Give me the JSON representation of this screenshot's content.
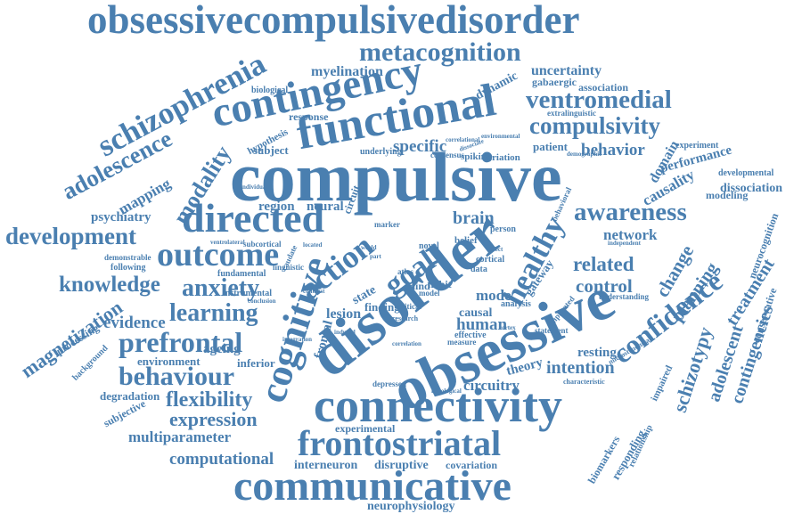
{
  "word_color": "#4a7fb0",
  "background": "#ffffff",
  "words": [
    {
      "key": "w1",
      "text": "obsessivecompulsivedisorder"
    },
    {
      "key": "w2",
      "text": "metacognition"
    },
    {
      "key": "w3",
      "text": "schizophrenia"
    },
    {
      "key": "w4",
      "text": "contingency"
    },
    {
      "key": "w5",
      "text": "myelination"
    },
    {
      "key": "w6",
      "text": "uncertainty"
    },
    {
      "key": "w7",
      "text": "functional"
    },
    {
      "key": "w8",
      "text": "ventromedial"
    },
    {
      "key": "w9",
      "text": "compulsivity"
    },
    {
      "key": "w10",
      "text": "adolescence"
    },
    {
      "key": "w11",
      "text": "compulsive"
    },
    {
      "key": "w12",
      "text": "modality"
    },
    {
      "key": "w13",
      "text": "directed"
    },
    {
      "key": "w14",
      "text": "awareness"
    },
    {
      "key": "w15",
      "text": "development"
    },
    {
      "key": "w16",
      "text": "outcome"
    },
    {
      "key": "w17",
      "text": "disorder"
    },
    {
      "key": "w18",
      "text": "cognitive"
    },
    {
      "key": "w19",
      "text": "action"
    },
    {
      "key": "w20",
      "text": "goal"
    },
    {
      "key": "w21",
      "text": "healthy"
    },
    {
      "key": "w22",
      "text": "knowledge"
    },
    {
      "key": "w23",
      "text": "anxiety"
    },
    {
      "key": "w24",
      "text": "learning"
    },
    {
      "key": "w25",
      "text": "obsessive"
    },
    {
      "key": "w26",
      "text": "prefrontal"
    },
    {
      "key": "w27",
      "text": "behaviour"
    },
    {
      "key": "w28",
      "text": "connectivity"
    },
    {
      "key": "w29",
      "text": "flexibility"
    },
    {
      "key": "w30",
      "text": "expression"
    },
    {
      "key": "w31",
      "text": "frontostriatal"
    },
    {
      "key": "w32",
      "text": "communicative"
    },
    {
      "key": "w33",
      "text": "multiparameter"
    },
    {
      "key": "w34",
      "text": "computational"
    },
    {
      "key": "w35",
      "text": "confidence"
    },
    {
      "key": "w36",
      "text": "magnetization"
    },
    {
      "key": "w37",
      "text": "evidence"
    },
    {
      "key": "w38",
      "text": "mapping"
    },
    {
      "key": "w39",
      "text": "psychiatry"
    },
    {
      "key": "w40",
      "text": "specific"
    },
    {
      "key": "w41",
      "text": "behavior"
    },
    {
      "key": "w42",
      "text": "planning"
    },
    {
      "key": "w43",
      "text": "control"
    },
    {
      "key": "w44",
      "text": "related"
    },
    {
      "key": "w45",
      "text": "network"
    },
    {
      "key": "w46",
      "text": "change"
    },
    {
      "key": "w47",
      "text": "treatment"
    },
    {
      "key": "w48",
      "text": "schizotypy"
    },
    {
      "key": "w49",
      "text": "adolescent"
    },
    {
      "key": "w50",
      "text": "contingencies"
    },
    {
      "key": "w51",
      "text": "brain"
    },
    {
      "key": "w52",
      "text": "human"
    },
    {
      "key": "w53",
      "text": "causal"
    },
    {
      "key": "w54",
      "text": "mode"
    },
    {
      "key": "w55",
      "text": "lesion"
    },
    {
      "key": "w56",
      "text": "region"
    },
    {
      "key": "w57",
      "text": "neural"
    },
    {
      "key": "w58",
      "text": "circuitry"
    },
    {
      "key": "w59",
      "text": "intention"
    },
    {
      "key": "w60",
      "text": "resting"
    },
    {
      "key": "w61",
      "text": "theory"
    },
    {
      "key": "w62",
      "text": "ageing"
    },
    {
      "key": "w63",
      "text": "environment"
    },
    {
      "key": "w64",
      "text": "inferior"
    },
    {
      "key": "w65",
      "text": "degradation"
    },
    {
      "key": "w66",
      "text": "subjective"
    },
    {
      "key": "w67",
      "text": "processing"
    },
    {
      "key": "w68",
      "text": "background"
    },
    {
      "key": "w69",
      "text": "interneuron"
    },
    {
      "key": "w70",
      "text": "disruptive"
    },
    {
      "key": "w71",
      "text": "covariation"
    },
    {
      "key": "w72",
      "text": "experimental"
    },
    {
      "key": "w73",
      "text": "neurophysiology"
    },
    {
      "key": "w74",
      "text": "biomarkers"
    },
    {
      "key": "w75",
      "text": "responding"
    },
    {
      "key": "w76",
      "text": "relationship"
    },
    {
      "key": "w77",
      "text": "performance"
    },
    {
      "key": "w78",
      "text": "causality"
    },
    {
      "key": "w79",
      "text": "domain"
    },
    {
      "key": "w80",
      "text": "experiment"
    },
    {
      "key": "w81",
      "text": "developmental"
    },
    {
      "key": "w82",
      "text": "dissociation"
    },
    {
      "key": "w83",
      "text": "modeling"
    },
    {
      "key": "w84",
      "text": "neurocognition"
    },
    {
      "key": "w85",
      "text": "conservative"
    },
    {
      "key": "w86",
      "text": "dynamic"
    },
    {
      "key": "w87",
      "text": "association"
    },
    {
      "key": "w88",
      "text": "gabaergic"
    },
    {
      "key": "w89",
      "text": "extralinguistic"
    },
    {
      "key": "w90",
      "text": "patient"
    },
    {
      "key": "w91",
      "text": "variation"
    },
    {
      "key": "w92",
      "text": "spiking"
    },
    {
      "key": "w93",
      "text": "consensus"
    },
    {
      "key": "w94",
      "text": "underlying"
    },
    {
      "key": "w95",
      "text": "subject"
    },
    {
      "key": "w96",
      "text": "hypothesis"
    },
    {
      "key": "w97",
      "text": "biological"
    },
    {
      "key": "w98",
      "text": "response"
    },
    {
      "key": "w99",
      "text": "following"
    },
    {
      "key": "w100",
      "text": "demonstrable"
    },
    {
      "key": "w101",
      "text": "fundamental"
    },
    {
      "key": "w102",
      "text": "instrumental"
    },
    {
      "key": "w103",
      "text": "subcortical"
    },
    {
      "key": "w104",
      "text": "ventrolateral"
    },
    {
      "key": "w105",
      "text": "linguistic"
    },
    {
      "key": "w106",
      "text": "circuit"
    },
    {
      "key": "w107",
      "text": "frontal"
    },
    {
      "key": "w108",
      "text": "state"
    },
    {
      "key": "w109",
      "text": "finding"
    },
    {
      "key": "w110",
      "text": "mind"
    },
    {
      "key": "w111",
      "text": "habit"
    },
    {
      "key": "w112",
      "text": "belief"
    },
    {
      "key": "w113",
      "text": "cortical"
    },
    {
      "key": "w114",
      "text": "data"
    },
    {
      "key": "w115",
      "text": "atlas"
    },
    {
      "key": "w116",
      "text": "model"
    },
    {
      "key": "w117",
      "text": "gateway"
    },
    {
      "key": "w118",
      "text": "effective"
    },
    {
      "key": "w119",
      "text": "measure"
    },
    {
      "key": "w120",
      "text": "impaired"
    },
    {
      "key": "w121",
      "text": "understanding"
    },
    {
      "key": "w122",
      "text": "characteristic"
    },
    {
      "key": "w123",
      "text": "depressed"
    },
    {
      "key": "w124",
      "text": "histological"
    },
    {
      "key": "w125",
      "text": "novel"
    },
    {
      "key": "w126",
      "text": "marker"
    },
    {
      "key": "w127",
      "text": "critical"
    },
    {
      "key": "w128",
      "text": "research"
    },
    {
      "key": "w129",
      "text": "analysis"
    },
    {
      "key": "w130",
      "text": "person"
    },
    {
      "key": "w131",
      "text": "caudate"
    },
    {
      "key": "w132",
      "text": "integration"
    },
    {
      "key": "w133",
      "text": "correlation"
    },
    {
      "key": "w134",
      "text": "conclusion"
    },
    {
      "key": "w135",
      "text": "independent"
    },
    {
      "key": "w136",
      "text": "microstructural"
    },
    {
      "key": "w137",
      "text": "implicated"
    },
    {
      "key": "w138",
      "text": "demographic"
    },
    {
      "key": "w139",
      "text": "correlational"
    },
    {
      "key": "w140",
      "text": "environmental"
    },
    {
      "key": "w141",
      "text": "statement"
    },
    {
      "key": "w142",
      "text": "individual"
    },
    {
      "key": "w143",
      "text": "contrast"
    },
    {
      "key": "w144",
      "text": "located"
    },
    {
      "key": "w145",
      "text": "behavioral"
    },
    {
      "key": "w146",
      "text": "induced"
    },
    {
      "key": "w147",
      "text": "world"
    },
    {
      "key": "w148",
      "text": "effect"
    },
    {
      "key": "w149",
      "text": "part"
    },
    {
      "key": "w150",
      "text": "cortex"
    },
    {
      "key": "w151",
      "text": "dissociate"
    }
  ]
}
